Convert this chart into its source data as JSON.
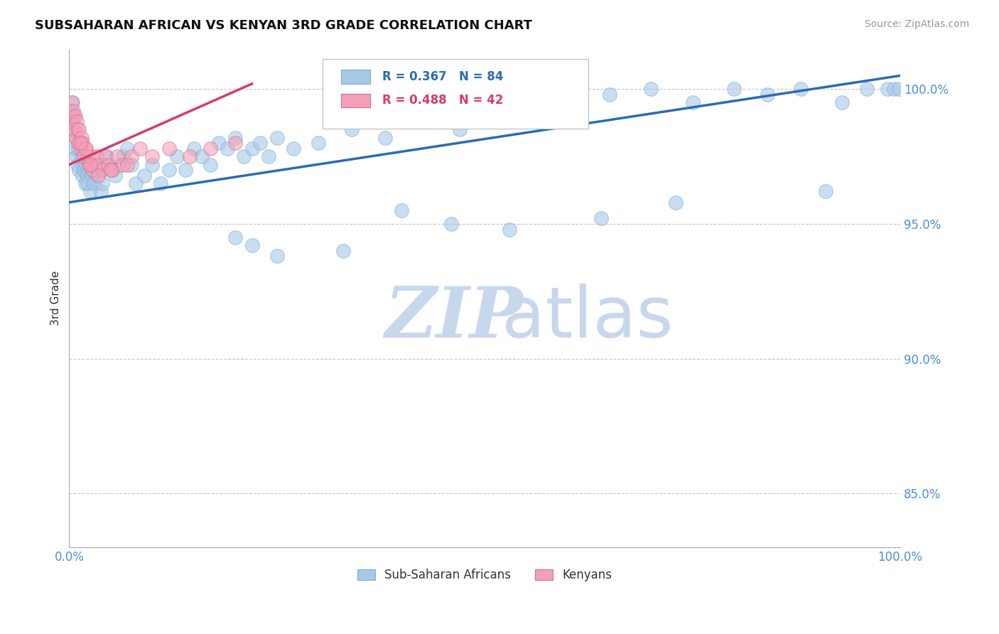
{
  "title": "SUBSAHARAN AFRICAN VS KENYAN 3RD GRADE CORRELATION CHART",
  "source": "Source: ZipAtlas.com",
  "ylabel": "3rd Grade",
  "legend_blue_label": "R = 0.367   N = 84",
  "legend_pink_label": "R = 0.488   N = 42",
  "legend_blue_short": "Sub-Saharan Africans",
  "legend_pink_short": "Kenyans",
  "blue_color": "#a8c8e8",
  "pink_color": "#f4a0b8",
  "blue_line_color": "#2b6cb0",
  "pink_line_color": "#d63b6e",
  "watermark_zip": "ZIP",
  "watermark_atlas": "atlas",
  "watermark_color": "#c8d8ec",
  "bg_color": "#ffffff",
  "grid_color": "#c8c8c8",
  "blue_scatter_x": [
    0.2,
    0.3,
    0.4,
    0.5,
    0.6,
    0.7,
    0.8,
    0.9,
    1.0,
    1.1,
    1.2,
    1.3,
    1.5,
    1.6,
    1.7,
    1.8,
    1.9,
    2.0,
    2.1,
    2.2,
    2.3,
    2.5,
    2.7,
    3.0,
    3.2,
    3.5,
    3.8,
    4.0,
    4.2,
    4.5,
    5.0,
    5.5,
    6.0,
    6.5,
    7.0,
    7.5,
    8.0,
    9.0,
    10.0,
    11.0,
    12.0,
    13.0,
    14.0,
    15.0,
    16.0,
    17.0,
    18.0,
    19.0,
    20.0,
    21.0,
    22.0,
    23.0,
    24.0,
    25.0,
    27.0,
    30.0,
    34.0,
    38.0,
    43.0,
    47.0,
    50.0,
    55.0,
    60.0,
    65.0,
    70.0,
    75.0,
    80.0,
    84.0,
    88.0,
    93.0,
    96.0,
    98.5,
    99.2,
    99.8,
    20.0,
    22.0,
    25.0,
    33.0,
    40.0,
    46.0,
    53.0,
    64.0,
    73.0,
    91.0
  ],
  "blue_scatter_y": [
    99.2,
    98.8,
    99.5,
    98.5,
    99.0,
    97.8,
    98.2,
    97.5,
    97.2,
    97.8,
    97.0,
    98.0,
    97.5,
    96.8,
    97.2,
    97.0,
    96.5,
    97.2,
    96.8,
    96.5,
    97.0,
    96.2,
    96.8,
    96.5,
    97.0,
    96.8,
    96.2,
    96.5,
    97.2,
    97.5,
    97.0,
    96.8,
    97.2,
    97.5,
    97.8,
    97.2,
    96.5,
    96.8,
    97.2,
    96.5,
    97.0,
    97.5,
    97.0,
    97.8,
    97.5,
    97.2,
    98.0,
    97.8,
    98.2,
    97.5,
    97.8,
    98.0,
    97.5,
    98.2,
    97.8,
    98.0,
    98.5,
    98.2,
    98.8,
    98.5,
    99.0,
    99.2,
    99.5,
    99.8,
    100.0,
    99.5,
    100.0,
    99.8,
    100.0,
    99.5,
    100.0,
    100.0,
    100.0,
    100.0,
    94.5,
    94.2,
    93.8,
    94.0,
    95.5,
    95.0,
    94.8,
    95.2,
    95.8,
    96.2
  ],
  "pink_scatter_x": [
    0.2,
    0.3,
    0.4,
    0.5,
    0.6,
    0.7,
    0.8,
    0.9,
    1.0,
    1.1,
    1.2,
    1.4,
    1.5,
    1.6,
    1.8,
    2.0,
    2.2,
    2.4,
    2.6,
    2.8,
    3.0,
    3.3,
    3.6,
    4.0,
    4.4,
    4.8,
    5.2,
    5.8,
    6.5,
    7.5,
    8.5,
    10.0,
    12.0,
    14.5,
    17.0,
    20.0,
    2.5,
    1.9,
    1.3,
    3.5,
    5.0,
    7.0
  ],
  "pink_scatter_y": [
    99.0,
    99.5,
    98.8,
    99.2,
    98.5,
    99.0,
    98.2,
    98.8,
    98.5,
    98.0,
    98.5,
    97.8,
    98.2,
    98.0,
    97.5,
    97.8,
    97.5,
    97.2,
    97.5,
    97.0,
    97.2,
    97.5,
    97.2,
    97.0,
    97.5,
    97.2,
    97.0,
    97.5,
    97.2,
    97.5,
    97.8,
    97.5,
    97.8,
    97.5,
    97.8,
    98.0,
    97.2,
    97.8,
    98.0,
    96.8,
    97.0,
    97.2
  ],
  "blue_line_x": [
    0.0,
    100.0
  ],
  "blue_line_y": [
    95.8,
    100.5
  ],
  "pink_line_x": [
    0.0,
    22.0
  ],
  "pink_line_y": [
    97.2,
    100.2
  ],
  "xmin": 0.0,
  "xmax": 100.0,
  "ymin": 83.0,
  "ymax": 101.5,
  "ytick_positions": [
    85.0,
    90.0,
    95.0,
    100.0
  ],
  "ytick_labels": [
    "85.0%",
    "90.0%",
    "95.0%",
    "100.0%"
  ]
}
